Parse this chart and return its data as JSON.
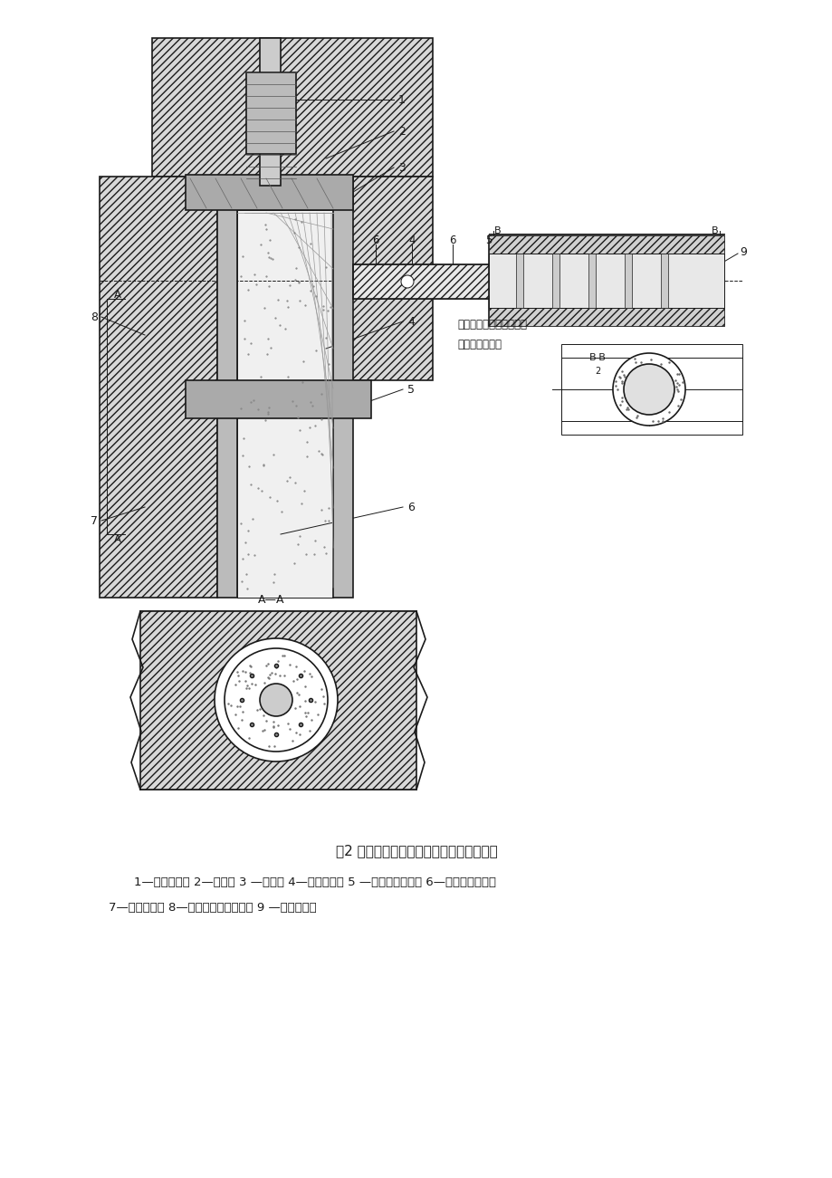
{
  "title": "图2 套筒灌浆饱满度微创取芯检测方法示意",
  "caption_line1": "1—预制端钢筋 2—排浆嘴 3 —排浆管 4—装配端钢筋 5 —半灌浆套筒筒壁 6—钢筋套筒灌浆料",
  "caption_line2": "7—灌浆联通腔 8—预制构件钢筋混凝土 9 —取芯钻筒壁",
  "bg_color": "#ffffff",
  "line_color": "#1a1a1a"
}
